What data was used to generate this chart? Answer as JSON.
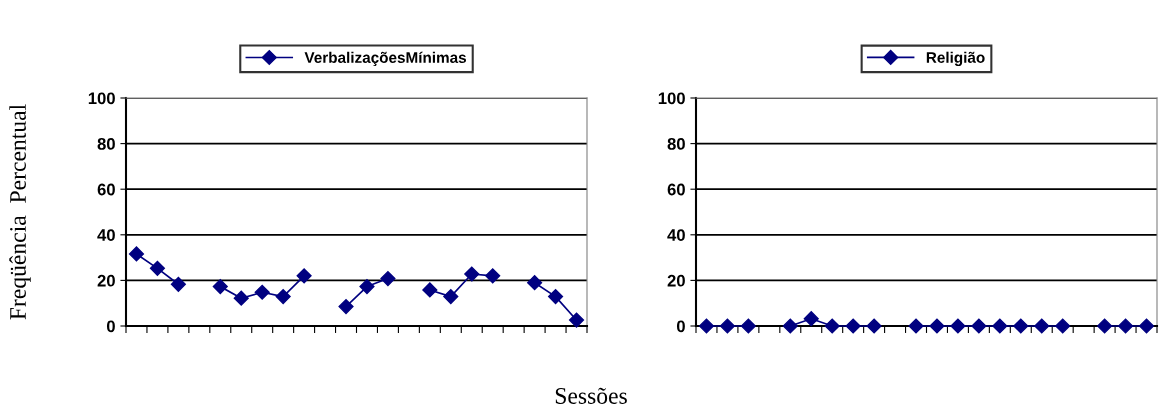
{
  "chart_data": [
    {
      "type": "line",
      "ylabel": "Freqüência  Percentual",
      "xlabel": "Sessões",
      "categories": [
        null,
        null,
        null,
        null,
        null,
        null,
        null,
        null,
        null,
        null,
        null,
        null,
        null,
        null,
        null,
        null,
        null,
        null,
        null,
        null,
        null,
        null
      ],
      "ylim": [
        0,
        100
      ],
      "yticks": [
        0,
        20,
        40,
        60,
        80,
        100
      ],
      "grid": "y",
      "legend": "top",
      "marker": "diamond",
      "line_style": "solid",
      "tick_labels": "y",
      "series": [
        {
          "name": "VerbalizaçõesMínimas",
          "color": "#000080",
          "values": [
            31.6,
            25.3,
            18.3,
            null,
            17.3,
            12.2,
            14.8,
            12.9,
            22.0,
            null,
            8.5,
            17.3,
            20.8,
            null,
            15.8,
            12.9,
            22.8,
            22.0,
            null,
            19.0,
            12.9,
            2.6
          ]
        }
      ]
    },
    {
      "type": "line",
      "categories": [
        null,
        null,
        null,
        null,
        null,
        null,
        null,
        null,
        null,
        null,
        null,
        null,
        null,
        null,
        null,
        null,
        null,
        null,
        null,
        null,
        null,
        null
      ],
      "ylim": [
        0,
        100
      ],
      "yticks": [
        0,
        20,
        40,
        60,
        80,
        100
      ],
      "grid": "y",
      "legend": "top",
      "marker": "diamond",
      "line_style": "solid",
      "tick_labels": "y",
      "series": [
        {
          "name": "Religião",
          "color": "#000080",
          "values": [
            0,
            0,
            0,
            null,
            0,
            3.2,
            0,
            0,
            0,
            null,
            0,
            0,
            0,
            0,
            0,
            0,
            0,
            0,
            null,
            0,
            0,
            0
          ]
        }
      ]
    }
  ]
}
